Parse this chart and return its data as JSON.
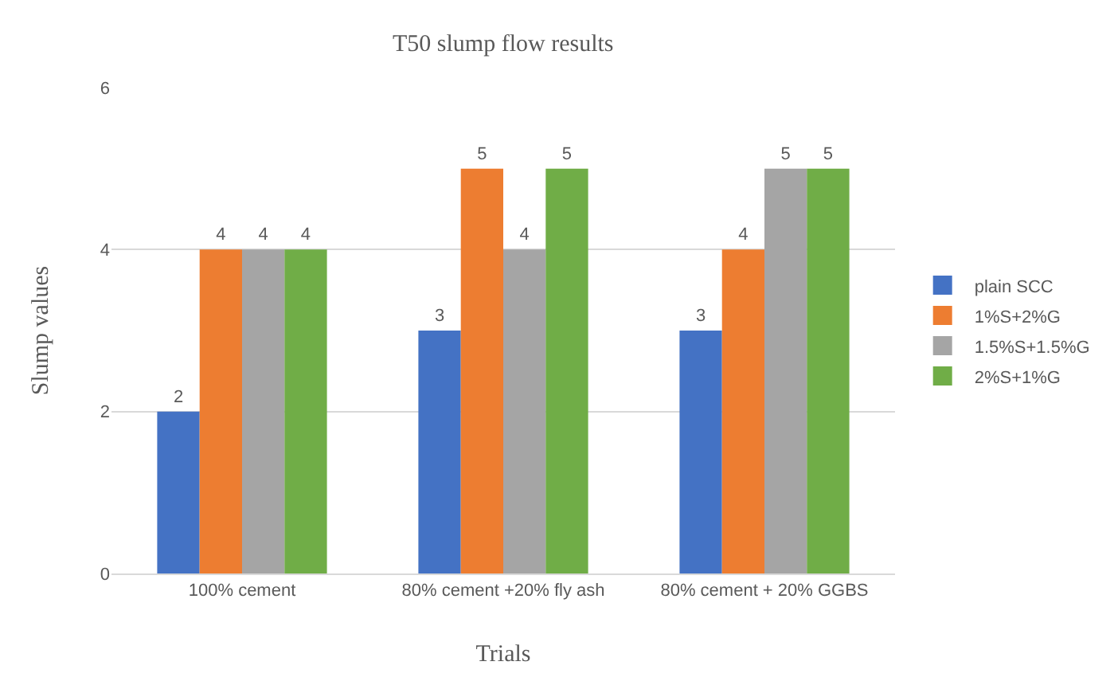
{
  "chart_data": {
    "type": "bar",
    "title": "T50 slump flow results",
    "xlabel": "Trials",
    "ylabel": "Slump values",
    "categories": [
      "100% cement",
      "80% cement +20% fly ash",
      "80% cement + 20% GGBS"
    ],
    "series": [
      {
        "name": "plain SCC",
        "color": "#4472c4",
        "values": [
          2,
          3,
          3
        ]
      },
      {
        "name": "1%S+2%G",
        "color": "#ed7d31",
        "values": [
          4,
          5,
          4
        ]
      },
      {
        "name": "1.5%S+1.5%G",
        "color": "#a5a5a5",
        "values": [
          4,
          4,
          5
        ]
      },
      {
        "name": "2%S+1%G",
        "color": "#70ad47",
        "values": [
          4,
          5,
          5
        ]
      }
    ],
    "ylim": [
      0,
      6
    ],
    "yticks": [
      0,
      2,
      4,
      6
    ],
    "grid": "y",
    "legend": "right",
    "data_labels": true
  }
}
